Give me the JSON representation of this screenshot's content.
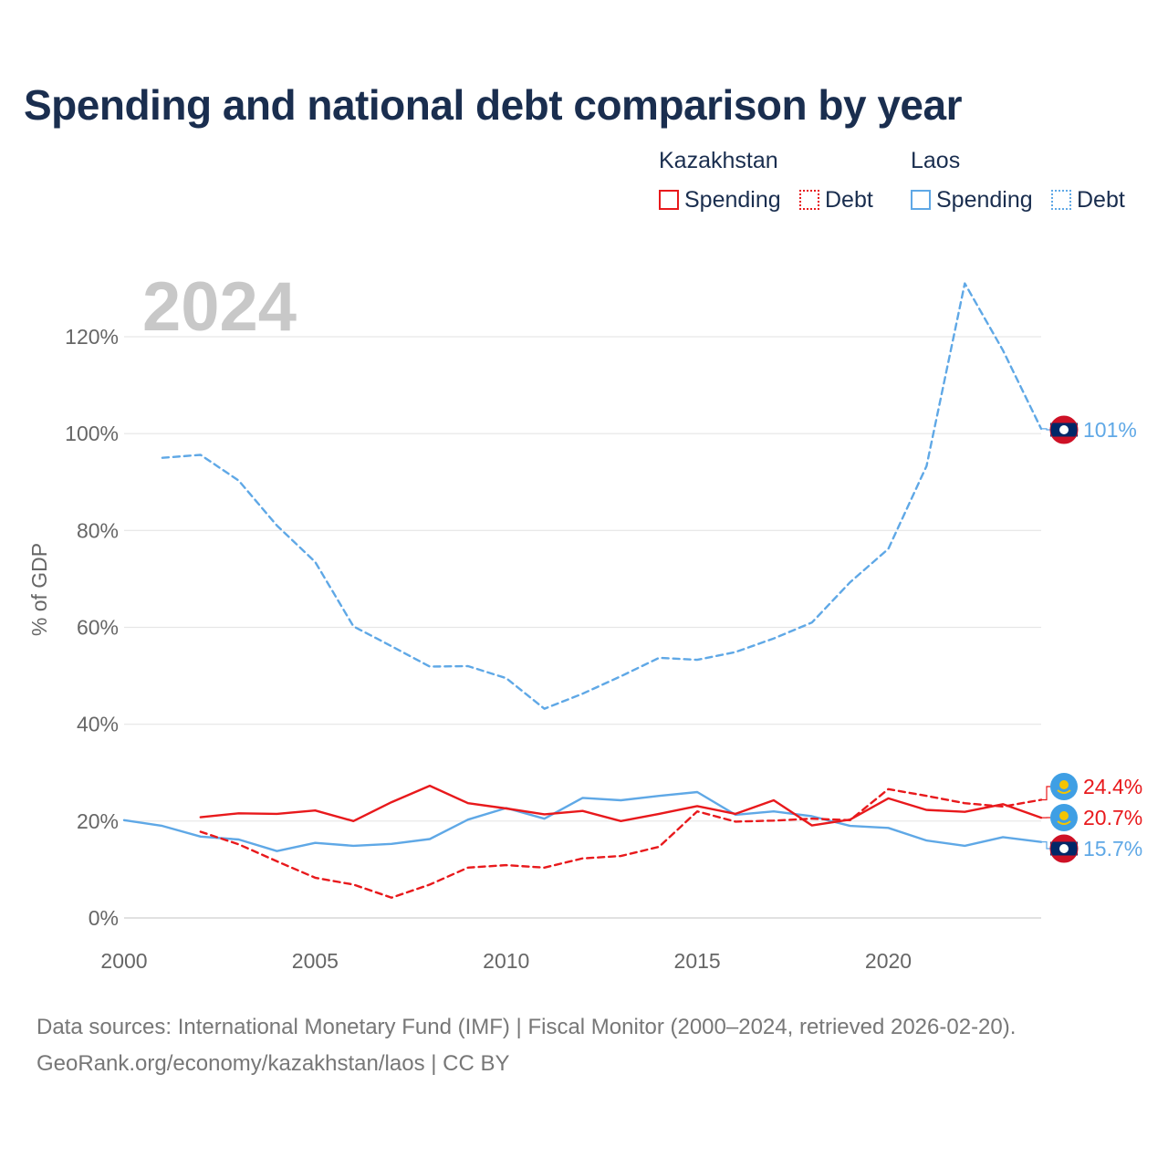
{
  "title": "Spending and national debt comparison by year",
  "legend": {
    "groups": [
      {
        "name": "Kazakhstan",
        "items": [
          {
            "label": "Spending",
            "style": "solid"
          },
          {
            "label": "Debt",
            "style": "dotted"
          }
        ],
        "color": "#e8191c"
      },
      {
        "name": "Laos",
        "items": [
          {
            "label": "Spending",
            "style": "solid"
          },
          {
            "label": "Debt",
            "style": "dotted"
          }
        ],
        "color": "#5fa8e6"
      }
    ]
  },
  "colors": {
    "kazakhstan": "#e8191c",
    "laos": "#5fa8e6",
    "grid": "#e6e6e6",
    "axis_text": "#666666",
    "year_watermark": "#c8c8c8"
  },
  "year_label": "2024",
  "end_labels": {
    "kaz_debt": "24.4%",
    "kaz_spending": "20.7%",
    "laos_spending": "15.7%",
    "laos_debt": "101%"
  },
  "chart_data": {
    "type": "line",
    "ylabel": "% of GDP",
    "xlabel": "",
    "xlim": [
      2000,
      2024
    ],
    "ylim": [
      0,
      130
    ],
    "x_ticks": [
      2000,
      2005,
      2010,
      2015,
      2020
    ],
    "y_ticks": [
      0,
      20,
      40,
      60,
      80,
      100,
      120
    ],
    "y_tick_labels": [
      "0%",
      "20%",
      "40%",
      "60%",
      "80%",
      "100%",
      "120%"
    ],
    "grid": true,
    "series": [
      {
        "name": "Kazakhstan Spending",
        "country": "kazakhstan",
        "style": "solid",
        "x": [
          2002,
          2003,
          2004,
          2005,
          2006,
          2007,
          2008,
          2009,
          2010,
          2011,
          2012,
          2013,
          2014,
          2015,
          2016,
          2017,
          2018,
          2019,
          2020,
          2021,
          2022,
          2023,
          2024
        ],
        "values": [
          20.8,
          21.6,
          21.5,
          22.2,
          20.0,
          23.9,
          27.3,
          23.7,
          22.6,
          21.4,
          22.1,
          20.0,
          21.5,
          23.1,
          21.5,
          24.3,
          19.1,
          20.3,
          24.7,
          22.3,
          21.9,
          23.5,
          20.7
        ]
      },
      {
        "name": "Kazakhstan Debt",
        "country": "kazakhstan",
        "style": "dashed",
        "x": [
          2002,
          2003,
          2004,
          2005,
          2006,
          2007,
          2008,
          2009,
          2010,
          2011,
          2012,
          2013,
          2014,
          2015,
          2016,
          2017,
          2018,
          2019,
          2020,
          2021,
          2022,
          2023,
          2024
        ],
        "values": [
          17.8,
          15.2,
          11.7,
          8.3,
          6.9,
          4.2,
          6.9,
          10.4,
          10.9,
          10.4,
          12.3,
          12.8,
          14.7,
          22.0,
          19.9,
          20.1,
          20.5,
          20.2,
          26.6,
          25.2,
          23.7,
          23.0,
          24.4
        ]
      },
      {
        "name": "Laos Spending",
        "country": "laos",
        "style": "solid",
        "x": [
          2000,
          2001,
          2002,
          2003,
          2004,
          2005,
          2006,
          2007,
          2008,
          2009,
          2010,
          2011,
          2012,
          2013,
          2014,
          2015,
          2016,
          2017,
          2018,
          2019,
          2020,
          2021,
          2022,
          2023,
          2024
        ],
        "values": [
          20.2,
          19.0,
          16.8,
          16.2,
          13.8,
          15.5,
          14.9,
          15.3,
          16.3,
          20.3,
          22.7,
          20.5,
          24.8,
          24.3,
          25.2,
          26.0,
          21.3,
          22.0,
          21.0,
          19.0,
          18.6,
          16.0,
          14.9,
          16.7,
          15.7
        ]
      },
      {
        "name": "Laos Debt",
        "country": "laos",
        "style": "dashed",
        "x": [
          2001,
          2002,
          2003,
          2004,
          2005,
          2006,
          2007,
          2008,
          2009,
          2010,
          2011,
          2012,
          2013,
          2014,
          2015,
          2016,
          2017,
          2018,
          2019,
          2020,
          2021,
          2022,
          2023,
          2024
        ],
        "values": [
          95.0,
          95.6,
          90.3,
          81.0,
          73.5,
          60.2,
          56.1,
          51.9,
          52.0,
          49.5,
          43.2,
          46.3,
          49.9,
          53.7,
          53.3,
          54.9,
          57.7,
          61.0,
          69.3,
          76.2,
          93.3,
          131.0,
          117.2,
          101.0
        ]
      }
    ]
  },
  "footer": {
    "line1": "Data sources: International Monetary Fund (IMF) | Fiscal Monitor (2000–2024, retrieved 2026-02-20).",
    "line2": "GeoRank.org/economy/kazakhstan/laos | CC BY"
  }
}
